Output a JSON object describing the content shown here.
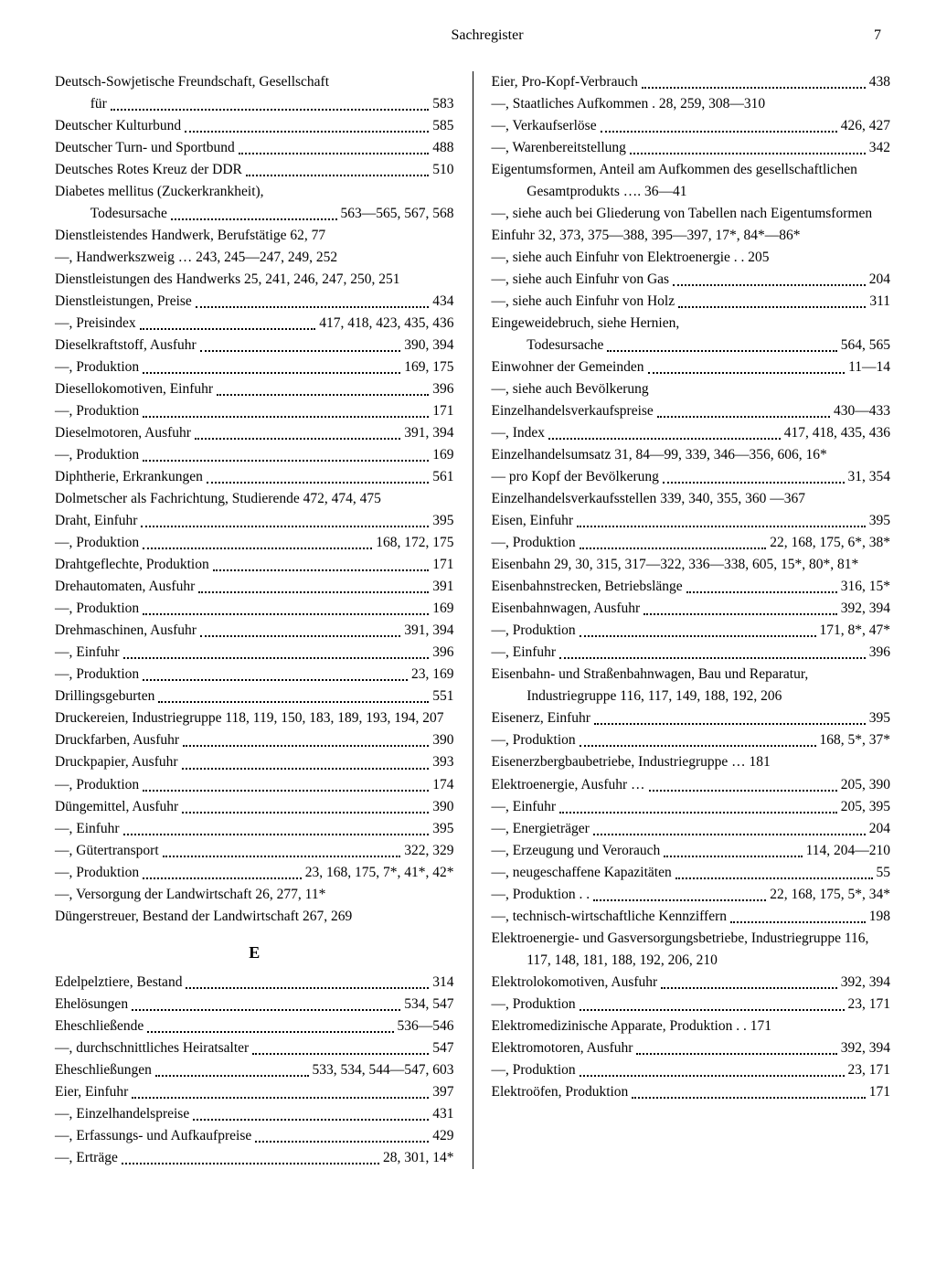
{
  "header": {
    "title": "Sachregister",
    "pageNumber": "7"
  },
  "sectionLetter": "E",
  "left": [
    {
      "type": "wrap",
      "text": "Deutsch-Sowjetische Freundschaft, Gesellschaft für",
      "pages": "583"
    },
    {
      "type": "dot",
      "text": "Deutscher Kulturbund",
      "pages": "585"
    },
    {
      "type": "dot",
      "text": "Deutscher Turn- und Sportbund",
      "pages": "488"
    },
    {
      "type": "dot",
      "text": "Deutsches Rotes Kreuz der DDR",
      "pages": "510"
    },
    {
      "type": "wrap",
      "text": "Diabetes mellitus (Zuckerkrankheit), Todesursache",
      "pages": "563—565, 567, 568"
    },
    {
      "type": "plain",
      "text": "Dienstleistendes Handwerk, Berufstätige 62, 77"
    },
    {
      "type": "plain",
      "text": "—, Handwerkszweig … 243, 245—247, 249, 252"
    },
    {
      "type": "noflex",
      "text": "Dienstleistungen des Handwerks 25, 241, 246, 247, 250, 251"
    },
    {
      "type": "dot",
      "text": "Dienstleistungen, Preise",
      "pages": "434"
    },
    {
      "type": "dot",
      "text": "—, Preisindex",
      "pages": "417, 418, 423, 435, 436"
    },
    {
      "type": "dot",
      "text": "Dieselkraftstoff, Ausfuhr",
      "pages": "390, 394"
    },
    {
      "type": "dot",
      "text": "—, Produktion",
      "pages": "169, 175"
    },
    {
      "type": "dot",
      "text": "Diesellokomotiven, Einfuhr",
      "pages": "396"
    },
    {
      "type": "dot",
      "text": "—, Produktion",
      "pages": "171"
    },
    {
      "type": "dot",
      "text": "Dieselmotoren, Ausfuhr",
      "pages": "391, 394"
    },
    {
      "type": "dot",
      "text": "—, Produktion",
      "pages": "169"
    },
    {
      "type": "dot",
      "text": "Diphtherie, Erkrankungen",
      "pages": "561"
    },
    {
      "type": "noflex",
      "text": "Dolmetscher als Fachrichtung, Studierende 472, 474, 475"
    },
    {
      "type": "dot",
      "text": "Draht, Einfuhr",
      "pages": "395"
    },
    {
      "type": "dot",
      "text": "—, Produktion",
      "pages": "168, 172, 175"
    },
    {
      "type": "dot",
      "text": "Drahtgeflechte, Produktion",
      "pages": "171"
    },
    {
      "type": "dot",
      "text": "Drehautomaten, Ausfuhr",
      "pages": "391"
    },
    {
      "type": "dot",
      "text": "—, Produktion",
      "pages": "169"
    },
    {
      "type": "dot",
      "text": "Drehmaschinen, Ausfuhr",
      "pages": "391, 394"
    },
    {
      "type": "dot",
      "text": "—, Einfuhr",
      "pages": "396"
    },
    {
      "type": "dot",
      "text": "—, Produktion",
      "pages": "23, 169"
    },
    {
      "type": "dot",
      "text": "Drillingsgeburten",
      "pages": "551"
    },
    {
      "type": "noflex",
      "text": "Druckereien, Industriegruppe 118, 119, 150, 183, 189, 193, 194, 207"
    },
    {
      "type": "dot",
      "text": "Druckfarben, Ausfuhr",
      "pages": "390"
    },
    {
      "type": "dot",
      "text": "Druckpapier, Ausfuhr",
      "pages": "393"
    },
    {
      "type": "dot",
      "text": "—, Produktion",
      "pages": "174"
    },
    {
      "type": "dot",
      "text": "Düngemittel, Ausfuhr",
      "pages": "390"
    },
    {
      "type": "dot",
      "text": "—, Einfuhr",
      "pages": "395"
    },
    {
      "type": "dot",
      "text": "—, Gütertransport",
      "pages": "322, 329"
    },
    {
      "type": "dot",
      "text": "—, Produktion",
      "pages": "23, 168, 175, 7*, 41*, 42*"
    },
    {
      "type": "plain",
      "text": "—, Versorgung der Landwirtschaft 26, 277, 11*"
    },
    {
      "type": "noflex",
      "text": "Düngerstreuer, Bestand der Landwirtschaft 267, 269"
    },
    {
      "type": "section"
    },
    {
      "type": "dot",
      "text": "Edelpelztiere, Bestand",
      "pages": "314"
    },
    {
      "type": "dot",
      "text": "Ehelösungen",
      "pages": "534, 547"
    },
    {
      "type": "dot",
      "text": "Eheschließende",
      "pages": "536—546"
    },
    {
      "type": "dot",
      "text": "—, durchschnittliches Heiratsalter",
      "pages": "547"
    },
    {
      "type": "dot",
      "text": "Eheschließungen",
      "pages": "533, 534, 544—547, 603"
    },
    {
      "type": "dot",
      "text": "Eier, Einfuhr",
      "pages": "397"
    },
    {
      "type": "dot",
      "text": "—, Einzelhandelspreise",
      "pages": "431"
    },
    {
      "type": "dot",
      "text": "—, Erfassungs- und Aufkaufpreise",
      "pages": "429"
    },
    {
      "type": "dot",
      "text": "—, Erträge",
      "pages": "28, 301, 14*"
    }
  ],
  "right": [
    {
      "type": "dot",
      "text": "Eier, Pro-Kopf-Verbrauch",
      "pages": "438"
    },
    {
      "type": "plain",
      "text": "—, Staatliches Aufkommen . 28, 259, 308—310"
    },
    {
      "type": "dot",
      "text": "—, Verkaufserlöse",
      "pages": "426, 427"
    },
    {
      "type": "dot",
      "text": "—, Warenbereitstellung",
      "pages": "342"
    },
    {
      "type": "noflex",
      "text": "Eigentumsformen, Anteil am Aufkommen des gesellschaftlichen Gesamtprodukts …. 36—41"
    },
    {
      "type": "noflex",
      "text": "—, siehe auch bei Gliederung von Tabellen nach Eigentumsformen"
    },
    {
      "type": "noflex",
      "text": "Einfuhr 32, 373, 375—388, 395—397, 17*, 84*—86*"
    },
    {
      "type": "plain",
      "text": "—, siehe auch Einfuhr von Elektroenergie . . 205"
    },
    {
      "type": "dot",
      "text": "—, siehe auch Einfuhr von Gas",
      "pages": "204"
    },
    {
      "type": "dot",
      "text": "—, siehe auch Einfuhr von Holz",
      "pages": "311"
    },
    {
      "type": "wrap",
      "text": "Eingeweidebruch, siehe Hernien, Todesursache",
      "pages": "564, 565"
    },
    {
      "type": "dot",
      "text": "Einwohner der Gemeinden",
      "pages": "11—14"
    },
    {
      "type": "plain",
      "text": "—, siehe auch Bevölkerung"
    },
    {
      "type": "dot",
      "text": "Einzelhandelsverkaufspreise",
      "pages": "430—433"
    },
    {
      "type": "dot",
      "text": "—, Index",
      "pages": "417, 418, 435, 436"
    },
    {
      "type": "noflex",
      "text": "Einzelhandelsumsatz 31, 84—99, 339, 346—356, 606, 16*"
    },
    {
      "type": "dot",
      "text": "— pro Kopf der Bevölkerung",
      "pages": "31, 354"
    },
    {
      "type": "noflex",
      "text": "Einzelhandelsverkaufsstellen 339, 340, 355, 360 —367"
    },
    {
      "type": "dot",
      "text": "Eisen, Einfuhr",
      "pages": "395"
    },
    {
      "type": "dot",
      "text": "—, Produktion",
      "pages": "22, 168, 175, 6*, 38*"
    },
    {
      "type": "noflex",
      "text": "Eisenbahn 29, 30, 315, 317—322, 336—338, 605, 15*, 80*, 81*"
    },
    {
      "type": "dot",
      "text": "Eisenbahnstrecken, Betriebslänge",
      "pages": "316, 15*"
    },
    {
      "type": "dot",
      "text": "Eisenbahnwagen, Ausfuhr",
      "pages": "392, 394"
    },
    {
      "type": "dot",
      "text": "—, Produktion",
      "pages": "171, 8*, 47*"
    },
    {
      "type": "dot",
      "text": "—, Einfuhr",
      "pages": "396"
    },
    {
      "type": "noflex",
      "text": "Eisenbahn- und Straßenbahnwagen, Bau und Reparatur, Industriegruppe 116, 117, 149, 188, 192, 206"
    },
    {
      "type": "dot",
      "text": "Eisenerz, Einfuhr",
      "pages": "395"
    },
    {
      "type": "dot",
      "text": "—, Produktion",
      "pages": "168, 5*, 37*"
    },
    {
      "type": "plain",
      "text": "Eisenerzbergbaubetriebe, Industriegruppe … 181"
    },
    {
      "type": "dot",
      "text": "Elektroenergie, Ausfuhr …",
      "pages": "205, 390"
    },
    {
      "type": "dot",
      "text": "—, Einfuhr",
      "pages": "205, 395"
    },
    {
      "type": "dot",
      "text": "—, Energieträger",
      "pages": "204"
    },
    {
      "type": "dot",
      "text": "—, Erzeugung und Verorauch",
      "pages": "114, 204—210"
    },
    {
      "type": "dot",
      "text": "—, neugeschaffene Kapazitäten",
      "pages": "55"
    },
    {
      "type": "dot",
      "text": "—, Produktion . .",
      "pages": "22, 168, 175, 5*, 34*"
    },
    {
      "type": "dot",
      "text": "—, technisch-wirtschaftliche Kennziffern",
      "pages": "198"
    },
    {
      "type": "noflex",
      "text": "Elektroenergie- und Gasversorgungsbetriebe, Industriegruppe 116, 117, 148, 181, 188, 192, 206, 210"
    },
    {
      "type": "dot",
      "text": "Elektrolokomotiven, Ausfuhr",
      "pages": "392, 394"
    },
    {
      "type": "dot",
      "text": "—, Produktion",
      "pages": "23, 171"
    },
    {
      "type": "plain",
      "text": "Elektromedizinische Apparate, Produktion . . 171"
    },
    {
      "type": "dot",
      "text": "Elektromotoren, Ausfuhr",
      "pages": "392, 394"
    },
    {
      "type": "dot",
      "text": "—, Produktion",
      "pages": "23, 171"
    },
    {
      "type": "dot",
      "text": "Elektroöfen, Produktion",
      "pages": "171"
    }
  ]
}
